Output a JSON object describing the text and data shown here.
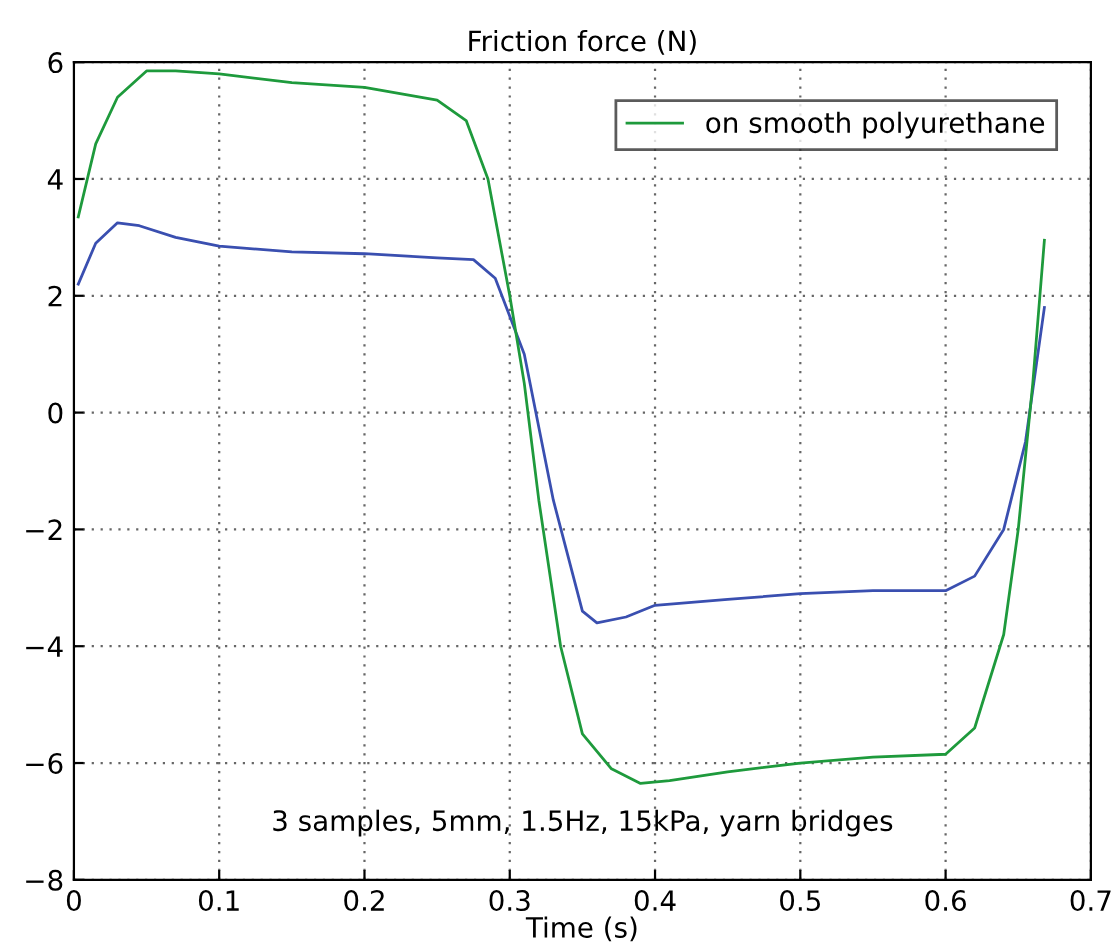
{
  "chart_data": {
    "type": "line",
    "title": "Friction force (N)",
    "xlabel": "Time (s)",
    "xlim": [
      0,
      0.7
    ],
    "xticks": [
      0,
      0.1,
      0.2,
      0.3,
      0.4,
      0.5,
      0.6,
      0.7
    ],
    "ylim": [
      -8,
      6
    ],
    "yticks": [
      {
        "value": -8,
        "label": "−8"
      },
      {
        "value": -6,
        "label": "−6"
      },
      {
        "value": -4,
        "label": "−4"
      },
      {
        "value": -2,
        "label": "−2"
      },
      0,
      2,
      4,
      6
    ],
    "grid": true,
    "legend": "top right",
    "marker": "none",
    "line_style": "solid",
    "annotations": [
      "3 samples, 5mm, 1.5Hz, 15kPa, yarn bridges"
    ],
    "series": [
      {
        "color": "#3a4fb0",
        "x": [
          0.003,
          0.015,
          0.03,
          0.045,
          0.07,
          0.1,
          0.15,
          0.2,
          0.25,
          0.275,
          0.29,
          0.31,
          0.33,
          0.35,
          0.36,
          0.38,
          0.4,
          0.45,
          0.5,
          0.55,
          0.6,
          0.62,
          0.64,
          0.655,
          0.668
        ],
        "values": [
          2.2,
          2.9,
          3.25,
          3.2,
          3.0,
          2.85,
          2.75,
          2.72,
          2.65,
          2.62,
          2.3,
          1.0,
          -1.5,
          -3.4,
          -3.6,
          -3.5,
          -3.3,
          -3.2,
          -3.1,
          -3.05,
          -3.05,
          -2.8,
          -2.0,
          -0.5,
          1.8
        ]
      },
      {
        "name": "on smooth polyurethane",
        "color": "#1e9a3c",
        "x": [
          0.003,
          0.015,
          0.03,
          0.05,
          0.07,
          0.1,
          0.15,
          0.2,
          0.25,
          0.27,
          0.285,
          0.3,
          0.31,
          0.32,
          0.335,
          0.35,
          0.37,
          0.39,
          0.41,
          0.45,
          0.5,
          0.55,
          0.6,
          0.62,
          0.64,
          0.65,
          0.66,
          0.668
        ],
        "values": [
          3.35,
          4.6,
          5.4,
          5.85,
          5.85,
          5.8,
          5.65,
          5.57,
          5.35,
          5.0,
          4.0,
          2.0,
          0.5,
          -1.5,
          -4.0,
          -5.5,
          -6.1,
          -6.35,
          -6.3,
          -6.15,
          -6.0,
          -5.9,
          -5.85,
          -5.4,
          -3.8,
          -2.0,
          0.5,
          2.95
        ]
      }
    ]
  }
}
